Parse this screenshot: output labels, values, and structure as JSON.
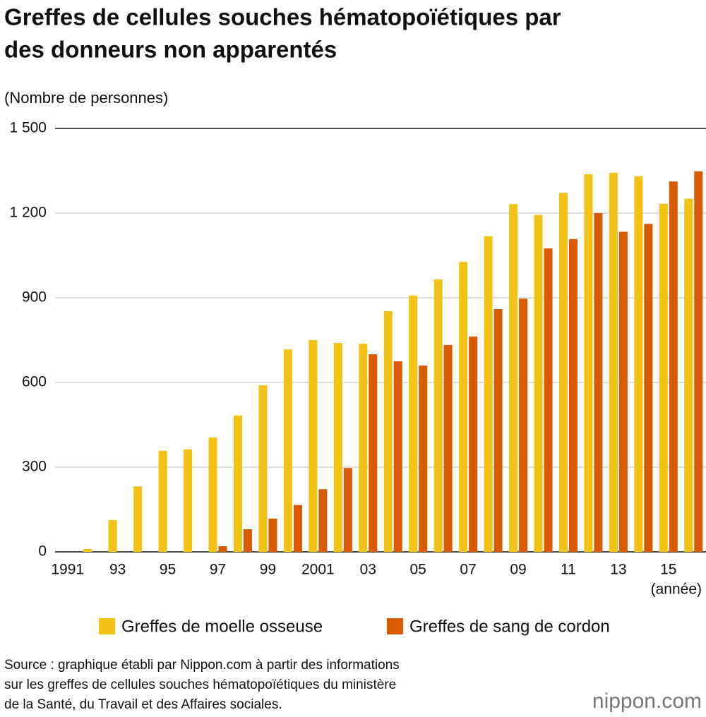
{
  "chart_data": {
    "type": "bar",
    "title": [
      "Greffes de cellules souches hématopoïétiques par",
      "des donneurs non apparentés"
    ],
    "y_axis_label": "(Nombre de personnes)",
    "x_axis_label": "(année)",
    "categories": [
      "1991",
      null,
      "93",
      null,
      "95",
      null,
      "97",
      null,
      "99",
      null,
      "2001",
      null,
      "03",
      null,
      "05",
      null,
      "07",
      null,
      "09",
      null,
      "11",
      null,
      "13",
      null,
      "15",
      null
    ],
    "series": [
      {
        "name": "Greffes de moelle osseuse",
        "color": "#f2c314",
        "values": [
          0,
          10,
          113,
          232,
          358,
          363,
          405,
          483,
          590,
          717,
          750,
          740,
          737,
          853,
          908,
          965,
          1027,
          1118,
          1232,
          1194,
          1272,
          1338,
          1343,
          1331,
          1233,
          1251
        ]
      },
      {
        "name": "Greffes de sang de cordon",
        "color": "#d95a00",
        "values": [
          0,
          0,
          0,
          0,
          0,
          0,
          20,
          80,
          118,
          166,
          222,
          297,
          700,
          675,
          660,
          733,
          763,
          860,
          897,
          1075,
          1108,
          1200,
          1134,
          1162,
          1312,
          1348
        ]
      }
    ],
    "ylim": [
      0,
      1500
    ],
    "yticks": [
      0,
      300,
      600,
      900,
      {
        "value": 1200,
        "label": "1 200"
      },
      {
        "value": 1500,
        "label": "1 500"
      }
    ],
    "grid": true,
    "legend": "bottom",
    "source": [
      "Source  : graphique établi par Nippon.com à partir des informations",
      "sur les greffes de cellules souches hématopoïétiques du ministère",
      "de la Santé, du Travail et des Affaires sociales."
    ],
    "logo": "nippon.com"
  }
}
